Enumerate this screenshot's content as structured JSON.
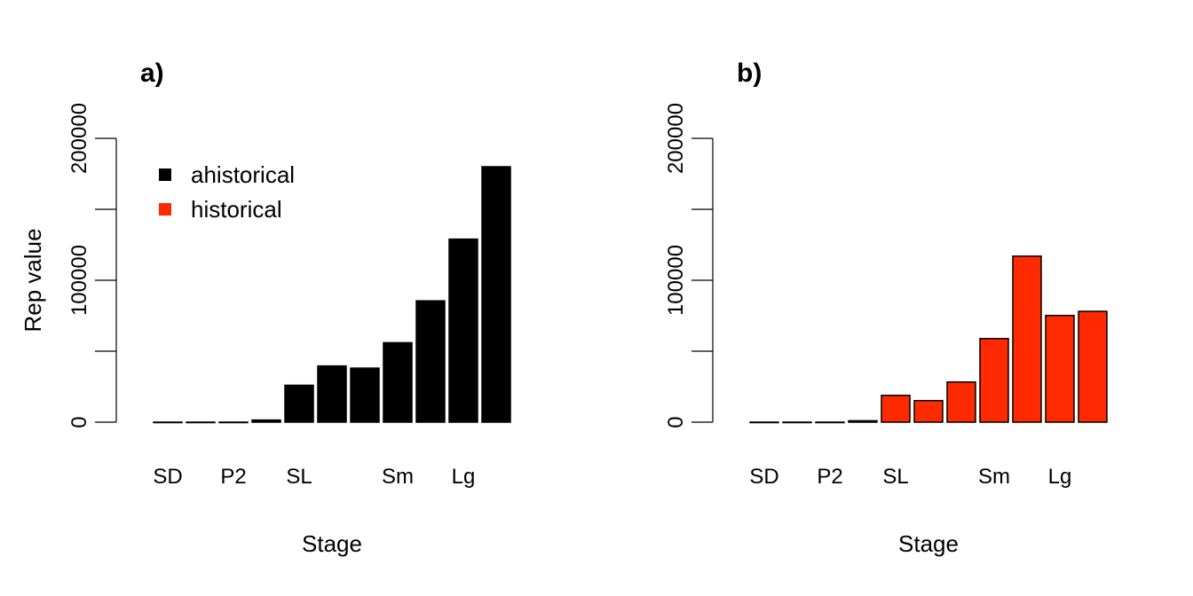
{
  "chart_data": [
    {
      "type": "bar",
      "panel_label": "a)",
      "xlabel": "Stage",
      "ylabel": "Rep value",
      "ylim": [
        0,
        200000
      ],
      "yticks": [
        0,
        50000,
        100000,
        150000,
        200000
      ],
      "ytick_labels": [
        "0",
        "",
        "100000",
        "",
        "200000"
      ],
      "categories": [
        "SD",
        "",
        "P2",
        "",
        "SL",
        "",
        "",
        "Sm",
        "",
        "Lg",
        ""
      ],
      "values": [
        0,
        0,
        0,
        1500,
        26000,
        39600,
        38100,
        56000,
        85500,
        129000,
        180000
      ],
      "color": "#000000",
      "legend": {
        "placement": "top-left",
        "entries": [
          {
            "label": "ahistorical",
            "color": "#000000"
          },
          {
            "label": "historical",
            "color": "#FF2A00"
          }
        ]
      }
    },
    {
      "type": "bar",
      "panel_label": "b)",
      "xlabel": "Stage",
      "ylabel": "",
      "ylim": [
        0,
        200000
      ],
      "yticks": [
        0,
        50000,
        100000,
        150000,
        200000
      ],
      "ytick_labels": [
        "0",
        "",
        "100000",
        "",
        "200000"
      ],
      "categories": [
        "SD",
        "",
        "P2",
        "",
        "SL",
        "",
        "",
        "Sm",
        "",
        "Lg",
        ""
      ],
      "values": [
        0,
        0,
        0,
        1000,
        18900,
        15200,
        28300,
        58900,
        117000,
        75200,
        78100
      ],
      "color": "#FF2A00"
    }
  ]
}
